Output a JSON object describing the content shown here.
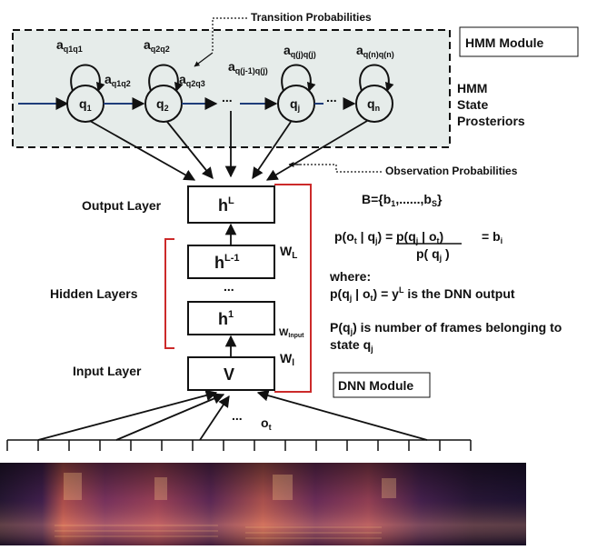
{
  "hmm": {
    "module_label": "HMM Module",
    "posteriors_label": [
      "HMM",
      "State",
      "Prosteriors"
    ],
    "transition_label": "Transition Probabilities",
    "observation_label": "Observation Probabilities",
    "dots": "...",
    "states": [
      {
        "base": "q",
        "sub": "1"
      },
      {
        "base": "q",
        "sub": "2"
      },
      {
        "base": "q",
        "sub": "j"
      },
      {
        "base": "q",
        "sub": "n"
      }
    ],
    "self_loops": [
      {
        "base": "a",
        "sub": "q1q1"
      },
      {
        "base": "a",
        "sub": "q2q2"
      },
      {
        "base": "a",
        "sub": "q(j)q(j)"
      },
      {
        "base": "a",
        "sub": "q(n)q(n)"
      }
    ],
    "transitions": [
      {
        "base": "a",
        "sub": "q1q2"
      },
      {
        "base": "a",
        "sub": "q2q3"
      },
      {
        "base": "a",
        "sub": "q(j-1)q(j)"
      }
    ]
  },
  "dnn": {
    "module_label": "DNN Module",
    "output_layer_label": "Output Layer",
    "hidden_layers_label": "Hidden Layers",
    "input_layer_label": "Input Layer",
    "layers": {
      "hL": {
        "base": "h",
        "sup": "L"
      },
      "hL1": {
        "base": "h",
        "sup": "L-1"
      },
      "h1": {
        "base": "h",
        "sup": "1"
      },
      "v": "V"
    },
    "dots": "...",
    "weights": {
      "wl_cap": {
        "base": "W",
        "sub": "L"
      },
      "winput": {
        "base": "W",
        "sub": "Input"
      },
      "wl": {
        "base": "W",
        "sub": "l"
      }
    },
    "obs": {
      "base": "o",
      "sub": "t"
    },
    "obs_dots": "..."
  },
  "equations": {
    "b_set": {
      "prefix": "B={b",
      "sub1": "1",
      "mid": ",......,b",
      "sub2": "S",
      "suffix": "}"
    },
    "bayes": {
      "lhs_pre": "p(o",
      "lhs_sub_t": "t",
      "lhs_mid": " | q",
      "lhs_sub_j": "j",
      "lhs_post": ") =",
      "num_pre": "p(q",
      "num_sub_j": "j",
      "num_mid": " | o",
      "num_sub_t": "t",
      "num_post": ")",
      "den_pre": "p( q",
      "den_sub_j": "j",
      "den_post": " )",
      "rhs_pre": "= b",
      "rhs_sub": "i"
    },
    "where": "where:",
    "dnn_output": {
      "pre": "p(q",
      "sub_j": "j",
      "mid": " | o",
      "sub_t": "t",
      "mid2": ") = y",
      "sup_L": "L",
      "post": " is the DNN output"
    },
    "prior": {
      "line1_pre": "P(q",
      "sub_j": "j",
      "line1_post": ") is number of frames belonging to",
      "line2_pre": "state q",
      "line2_sub": "j"
    }
  },
  "colors": {
    "hmm_bg": "#e6ecea",
    "red_bracket": "#cc2a2a",
    "arrow": "#1f3d7a"
  }
}
